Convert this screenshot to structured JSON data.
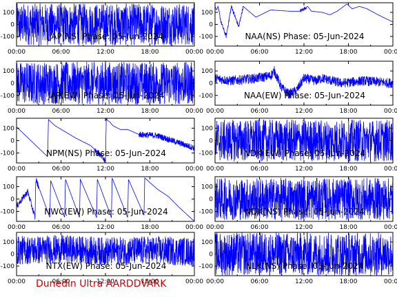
{
  "footer_text": "Dunedin Ultra AARDDVARK",
  "colors": {
    "trace": "#0000ff",
    "footer": "#cc0000",
    "axes": "#000000",
    "background": "#ffffff"
  },
  "chart_data": [
    {
      "type": "line",
      "title": "JAP(NS) Phase: 05-Jun-2024",
      "ylim": [
        -180,
        180
      ],
      "yticks": [
        100,
        0,
        -100
      ],
      "xticks": [
        "00:00",
        "06:00",
        "12:00",
        "18:00",
        "00:00"
      ],
      "trend": [
        [
          0,
          0
        ],
        [
          24,
          0
        ]
      ],
      "noise": 175,
      "noise_windows": [
        [
          0,
          24
        ]
      ]
    },
    {
      "type": "line",
      "title": "NAA(NS) Phase: 05-Jun-2024",
      "ylim": [
        -180,
        180
      ],
      "yticks": [
        100,
        0,
        -100
      ],
      "xticks": [
        "00:00",
        "06:00",
        "12:00",
        "18:00",
        "00:00"
      ],
      "trend": [
        [
          0,
          150
        ],
        [
          0.2,
          120
        ],
        [
          0.4,
          150
        ],
        [
          0.8,
          20
        ],
        [
          1.5,
          -100
        ],
        [
          2.2,
          150
        ],
        [
          3.2,
          -20
        ],
        [
          3.8,
          150
        ],
        [
          5.5,
          60
        ],
        [
          7.5,
          120
        ],
        [
          10,
          110
        ],
        [
          11.5,
          110
        ],
        [
          12.5,
          150
        ],
        [
          13,
          110
        ],
        [
          14.5,
          100
        ],
        [
          15.5,
          80
        ],
        [
          16.5,
          110
        ],
        [
          17.8,
          170
        ],
        [
          18.5,
          130
        ],
        [
          19.5,
          150
        ],
        [
          20.5,
          130
        ],
        [
          22,
          80
        ],
        [
          24,
          20
        ]
      ],
      "noise": 15,
      "noise_windows": [
        [
          0.5,
          3.8
        ],
        [
          11.5,
          12.3
        ]
      ]
    },
    {
      "type": "line",
      "title": "JAP(EW) Phase: 05-Jun-2024",
      "ylim": [
        -180,
        180
      ],
      "yticks": [
        100,
        0,
        -100
      ],
      "xticks": [
        "00:00",
        "06:00",
        "12:00",
        "18:00",
        "00:00"
      ],
      "trend": [
        [
          0,
          0
        ],
        [
          24,
          0
        ]
      ],
      "noise": 175,
      "noise_windows": [
        [
          0,
          24
        ]
      ]
    },
    {
      "type": "line",
      "title": "NAA(EW) Phase: 05-Jun-2024",
      "ylim": [
        -180,
        180
      ],
      "yticks": [
        100,
        0,
        -100
      ],
      "xticks": [
        "00:00",
        "06:00",
        "12:00",
        "18:00",
        "00:00"
      ],
      "trend": [
        [
          0,
          40
        ],
        [
          2,
          20
        ],
        [
          5.5,
          40
        ],
        [
          7.5,
          60
        ],
        [
          8,
          100
        ],
        [
          9,
          -40
        ],
        [
          10,
          -90
        ],
        [
          11,
          -60
        ],
        [
          12,
          40
        ],
        [
          13.5,
          20
        ],
        [
          14.5,
          40
        ],
        [
          17,
          0
        ],
        [
          20,
          20
        ],
        [
          24,
          0
        ]
      ],
      "noise": 40,
      "noise_windows": [
        [
          0,
          24
        ]
      ]
    },
    {
      "type": "line",
      "title": "NPM(NS) Phase: 05-Jun-2024",
      "ylim": [
        -180,
        180
      ],
      "yticks": [
        100,
        0,
        -100
      ],
      "xticks": [
        "00:00",
        "06:00",
        "12:00",
        "18:00",
        "00:00"
      ],
      "trend": [
        [
          0,
          110
        ],
        [
          4.2,
          -130
        ],
        [
          4.3,
          170
        ],
        [
          5.2,
          120
        ],
        [
          8,
          20
        ],
        [
          10,
          -40
        ],
        [
          11.2,
          -110
        ],
        [
          12,
          -170
        ],
        [
          12.1,
          170
        ],
        [
          12.6,
          150
        ],
        [
          13,
          120
        ],
        [
          14,
          90
        ],
        [
          15,
          90
        ],
        [
          16.5,
          50
        ],
        [
          19,
          40
        ],
        [
          24,
          -60
        ]
      ],
      "noise": 25,
      "noise_windows": [
        [
          10.5,
          12.2
        ],
        [
          16.5,
          24
        ]
      ]
    },
    {
      "type": "line",
      "title": "NDK(EW) Phase: 05-Jun-2024",
      "ylim": [
        -180,
        180
      ],
      "yticks": [
        100,
        0,
        -100
      ],
      "xticks": [
        "00:00",
        "06:00",
        "12:00",
        "18:00",
        "00:00"
      ],
      "trend": [
        [
          0,
          0
        ],
        [
          24,
          0
        ]
      ],
      "noise": 170,
      "noise_windows": [
        [
          0,
          24
        ]
      ]
    },
    {
      "type": "line",
      "title": "NWC(EW) Phase: 05-Jun-2024",
      "ylim": [
        -180,
        180
      ],
      "yticks": [
        100,
        0,
        -100
      ],
      "xticks": [
        "00:00",
        "06:00",
        "12:00",
        "18:00",
        "00:00"
      ],
      "trend": [
        [
          0,
          -60
        ],
        [
          1.5,
          60
        ],
        [
          2.5,
          -150
        ],
        [
          2.6,
          160
        ],
        [
          4.5,
          -150
        ],
        [
          4.6,
          150
        ],
        [
          6.5,
          -150
        ],
        [
          6.6,
          160
        ],
        [
          8.5,
          -150
        ],
        [
          8.6,
          160
        ],
        [
          10.8,
          -150
        ],
        [
          10.9,
          160
        ],
        [
          12.8,
          -150
        ],
        [
          12.9,
          170
        ],
        [
          15,
          -150
        ],
        [
          15.1,
          160
        ],
        [
          17.2,
          -130
        ],
        [
          17.3,
          170
        ],
        [
          19,
          80
        ],
        [
          20.5,
          20
        ],
        [
          22,
          -70
        ],
        [
          24,
          -180
        ]
      ],
      "noise": 25,
      "noise_windows": [
        [
          0,
          3
        ]
      ]
    },
    {
      "type": "line",
      "title": "NDK(NS) Phase: 05-Jun-2024",
      "ylim": [
        -180,
        180
      ],
      "yticks": [
        100,
        0,
        -100
      ],
      "xticks": [
        "00:00",
        "06:00",
        "12:00",
        "18:00",
        "00:00"
      ],
      "trend": [
        [
          0,
          0
        ],
        [
          24,
          0
        ]
      ],
      "noise": 170,
      "noise_windows": [
        [
          0,
          24
        ]
      ]
    },
    {
      "type": "line",
      "title": "NTX(EW) Phase: 05-Jun-2024",
      "ylim": [
        -180,
        180
      ],
      "yticks": [
        100,
        0,
        -100
      ],
      "xticks": [
        "00:00",
        "06:00",
        "12:00",
        "18:00",
        "00:00"
      ],
      "trend": [
        [
          0,
          30
        ],
        [
          6,
          40
        ],
        [
          12,
          20
        ],
        [
          18,
          30
        ],
        [
          24,
          20
        ]
      ],
      "noise": 120,
      "noise_windows": [
        [
          0,
          24
        ]
      ]
    },
    {
      "type": "line",
      "title": "NLK(NS) Phase: 05-Jun-2024",
      "ylim": [
        -180,
        180
      ],
      "yticks": [
        100,
        0,
        -100
      ],
      "xticks": [
        "00:00",
        "06:00",
        "12:00",
        "18:00",
        "00:00"
      ],
      "trend": [
        [
          0,
          0
        ],
        [
          24,
          0
        ]
      ],
      "noise": 180,
      "noise_windows": [
        [
          0,
          24
        ]
      ]
    }
  ]
}
